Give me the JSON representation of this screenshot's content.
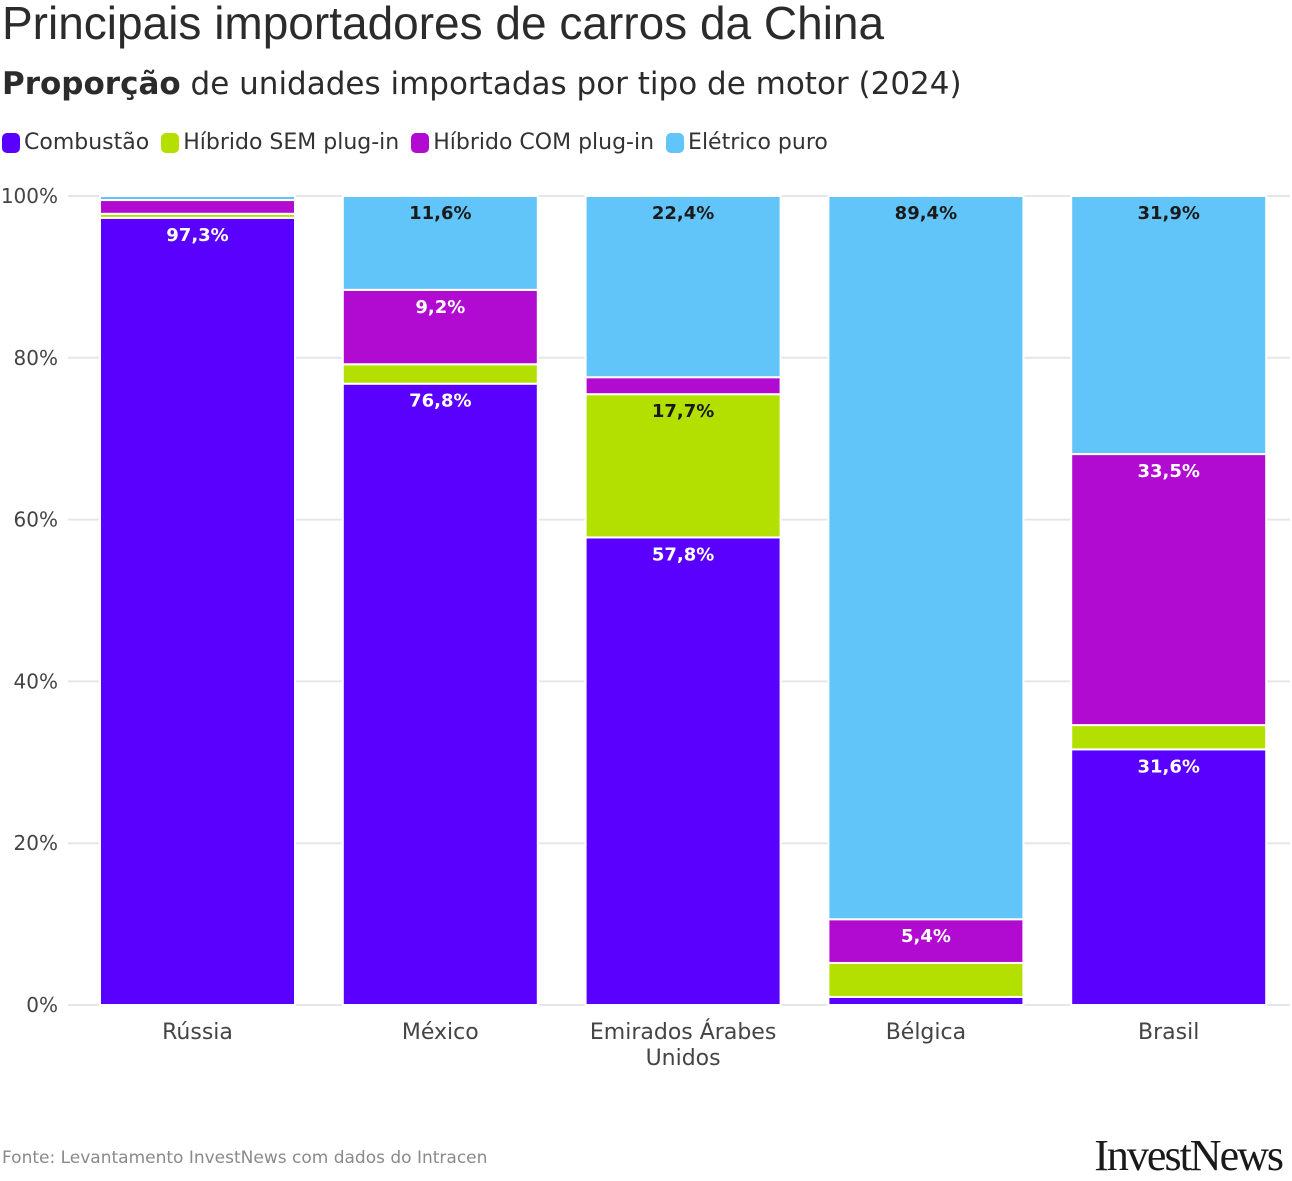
{
  "header": {
    "title": "Principais importadores de carros da China",
    "subtitle_bold": "Proporção",
    "subtitle_rest": " de unidades importadas por tipo de motor (2024)"
  },
  "legend": [
    {
      "label": "Combustão",
      "color": "#5a00ff"
    },
    {
      "label": "Híbrido SEM plug-in",
      "color": "#b4e000"
    },
    {
      "label": "Híbrido COM plug-in",
      "color": "#b10ad1"
    },
    {
      "label": "Elétrico puro",
      "color": "#62c5fa"
    }
  ],
  "chart_data": {
    "type": "bar",
    "stacked": true,
    "title": "Principais importadores de carros da China",
    "ylabel": "",
    "xlabel": "",
    "ylim": [
      0,
      100
    ],
    "yticks": [
      "0%",
      "20%",
      "40%",
      "60%",
      "80%",
      "100%"
    ],
    "ytick_values": [
      0,
      20,
      40,
      60,
      80,
      100
    ],
    "categories": [
      [
        "Rússia"
      ],
      [
        "México"
      ],
      [
        "Emirados Árabes",
        "Unidos"
      ],
      [
        "Bélgica"
      ],
      [
        "Brasil"
      ]
    ],
    "series": [
      {
        "name": "Combustão",
        "color": "#5a00ff",
        "values": [
          97.3,
          76.8,
          57.8,
          1.0,
          31.6
        ],
        "labels": [
          "97,3%",
          "76,8%",
          "57,8%",
          "",
          "31,6%"
        ],
        "label_color": "#ffffff"
      },
      {
        "name": "Híbrido SEM plug-in",
        "color": "#b4e000",
        "values": [
          0.5,
          2.4,
          17.7,
          4.2,
          3.0
        ],
        "labels": [
          "",
          "",
          "17,7%",
          "",
          ""
        ],
        "label_color": "#1a1a1a"
      },
      {
        "name": "Híbrido COM plug-in",
        "color": "#b10ad1",
        "values": [
          1.7,
          9.2,
          2.1,
          5.4,
          33.5
        ],
        "labels": [
          "",
          "9,2%",
          "",
          "5,4%",
          "33,5%"
        ],
        "label_color": "#ffffff"
      },
      {
        "name": "Elétrico puro",
        "color": "#62c5fa",
        "values": [
          0.5,
          11.6,
          22.4,
          89.4,
          31.9
        ],
        "labels": [
          "",
          "11,6%",
          "22,4%",
          "89,4%",
          "31,9%"
        ],
        "label_color": "#1a1a1a"
      }
    ]
  },
  "footer": {
    "source": "Fonte: Levantamento InvestNews com dados do Intracen",
    "logo": "InvestNews"
  }
}
